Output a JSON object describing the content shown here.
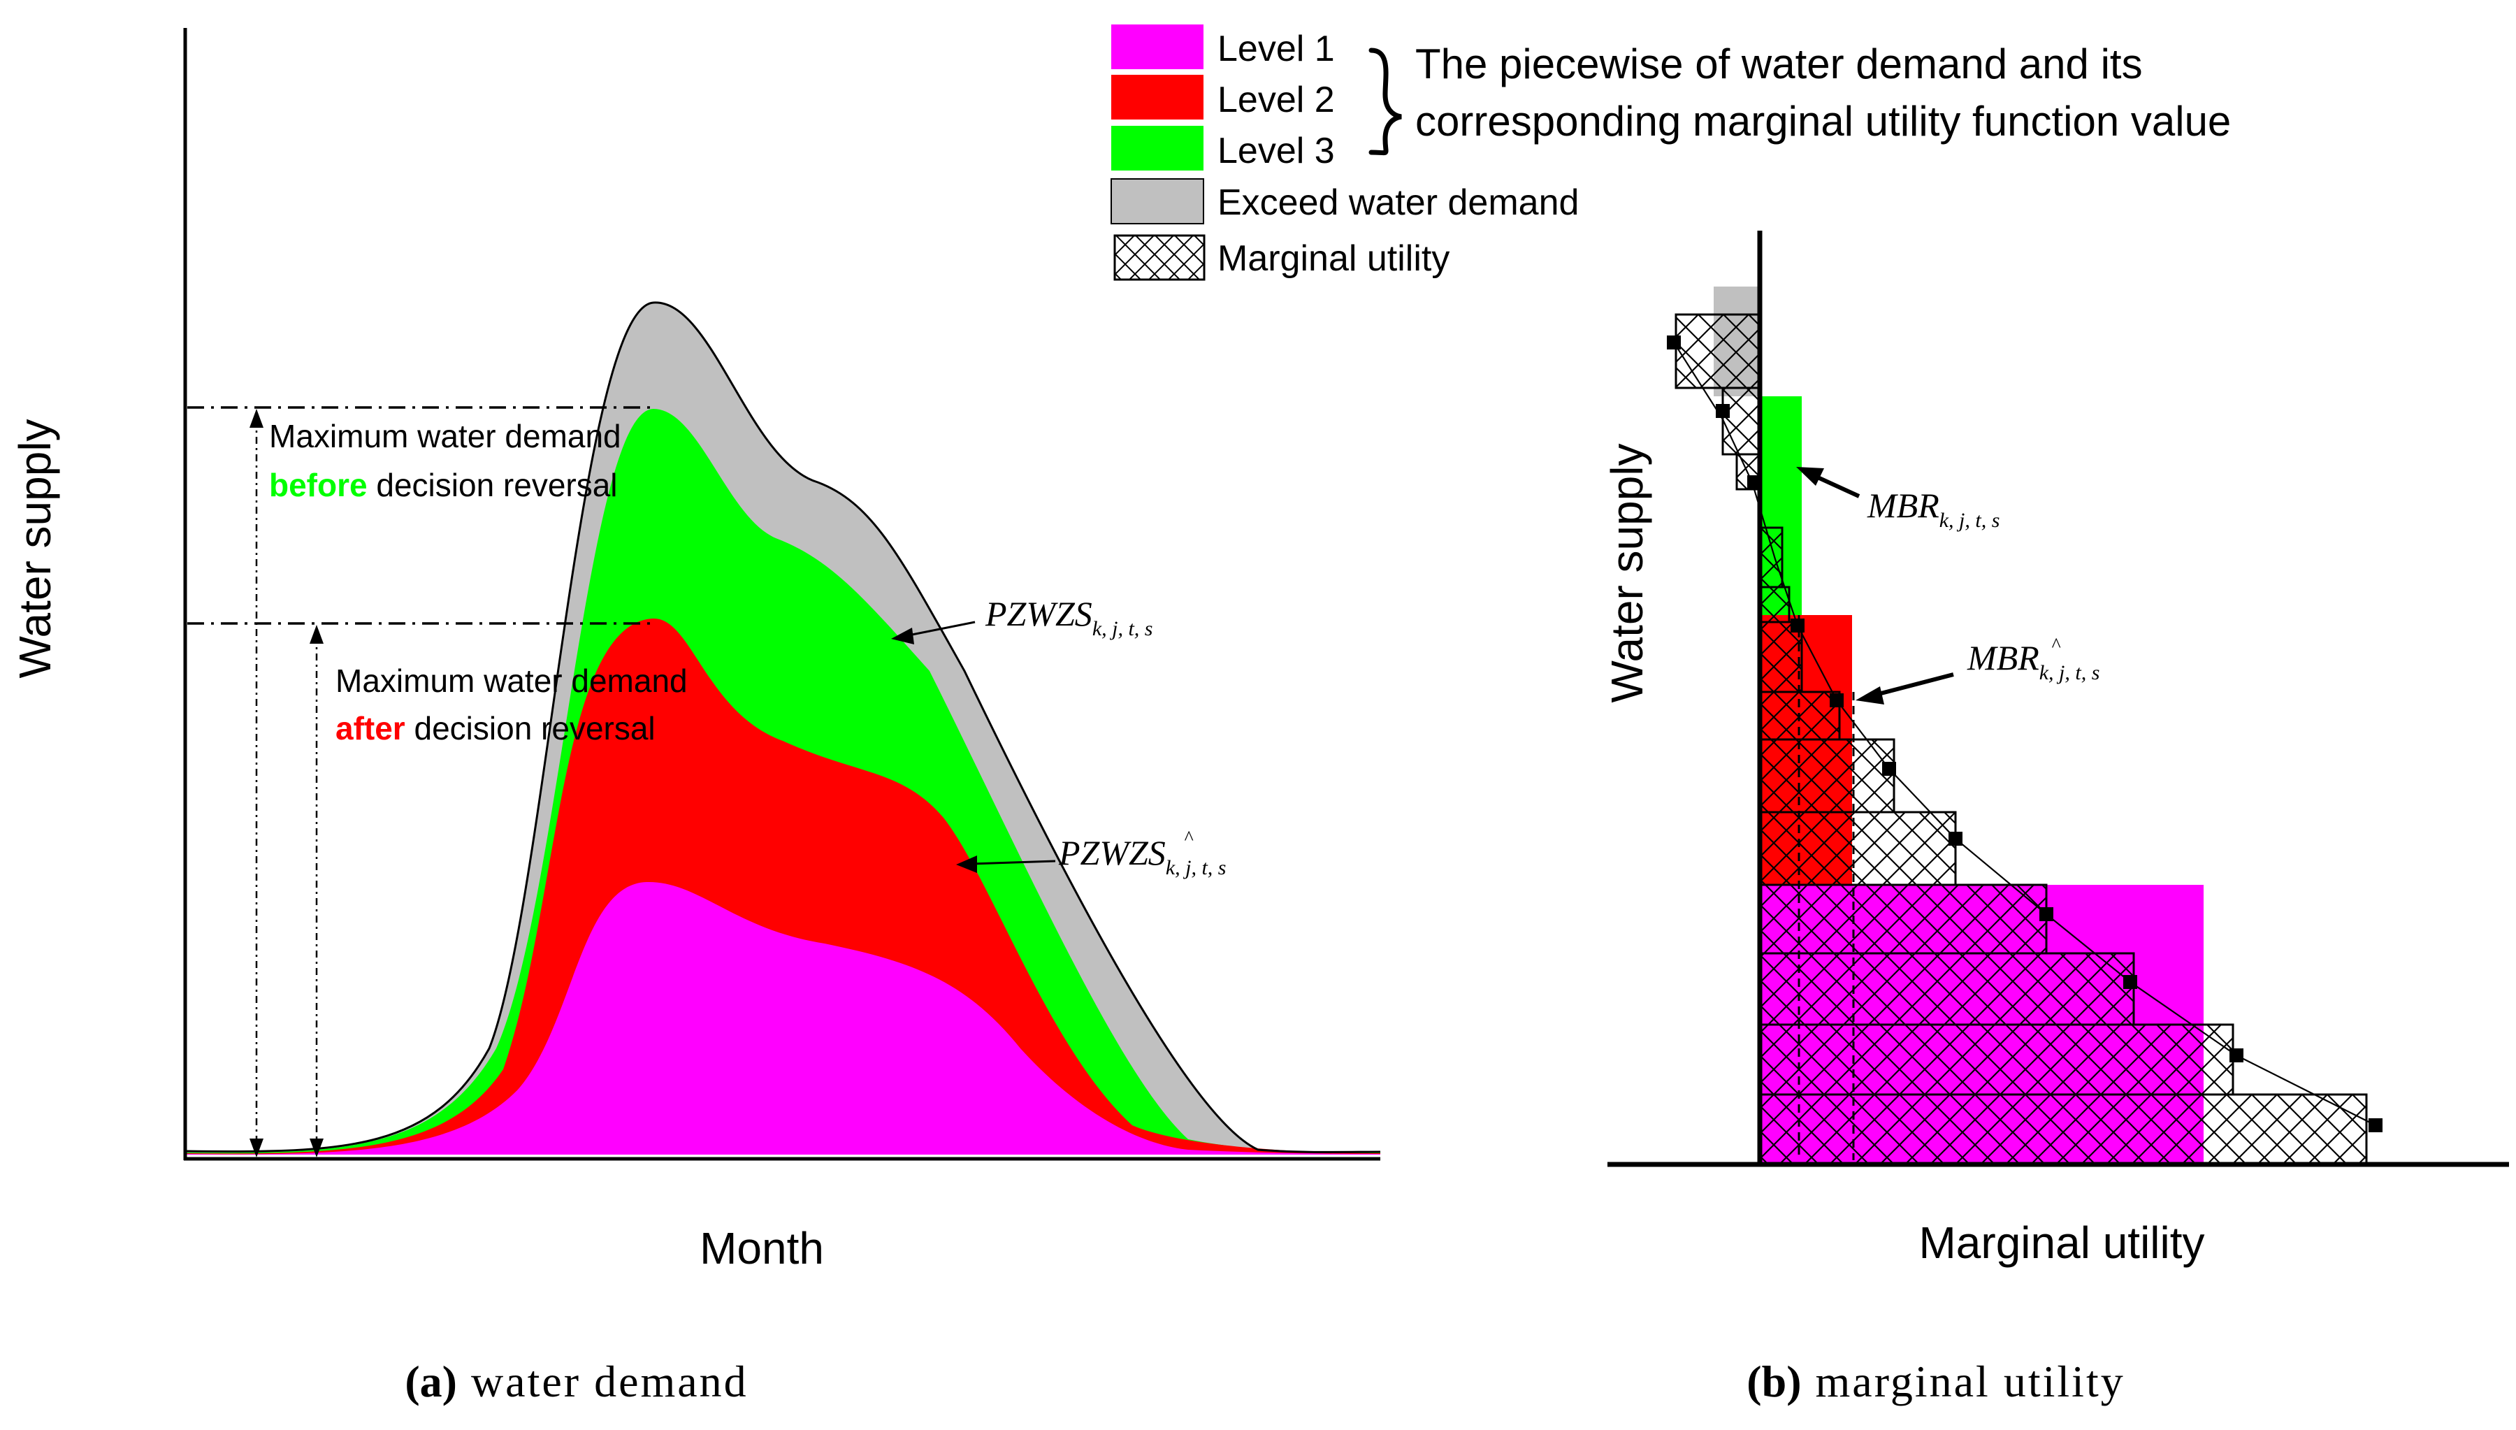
{
  "legend": {
    "level1": {
      "label": "Level 1",
      "color": "#ff00ff"
    },
    "level2": {
      "label": "Level 2",
      "color": "#ff0000"
    },
    "level3": {
      "label": "Level 3",
      "color": "#00ff00"
    },
    "exceed": {
      "label": "Exceed water demand",
      "color": "#c0c0c0"
    },
    "marginal": {
      "label": "Marginal utility"
    },
    "brace_note_line1": "The piecewise of water demand and its",
    "brace_note_line2": "corresponding marginal utility function value"
  },
  "panel_a": {
    "ylabel": "Water supply",
    "xlabel": "Month",
    "caption_tag": "(a)",
    "caption_text": "water demand",
    "annot_before_line1": "Maximum water demand",
    "annot_before_emph": "before",
    "annot_before_rest": " decision reversal",
    "annot_after_line1": "Maximum water demand",
    "annot_after_emph": "after",
    "annot_after_rest": " decision reversal",
    "curve_label_main": "PZWZS",
    "curve_label_sub": "k, j, t, s",
    "curve_hat_label_main": "PZWZS",
    "curve_hat_label_sub": "k, j, t, s",
    "hat_mark": "^"
  },
  "panel_b": {
    "ylabel": "Water supply",
    "xlabel": "Marginal utility",
    "caption_tag": "(b)",
    "caption_text": "marginal utility",
    "mbr_label_main": "MBR",
    "mbr_label_sub": "k, j, t, s",
    "mbr_hat_label_main": "MBR",
    "mbr_hat_label_sub": "k, j, t, s",
    "hat_mark": "^"
  }
}
